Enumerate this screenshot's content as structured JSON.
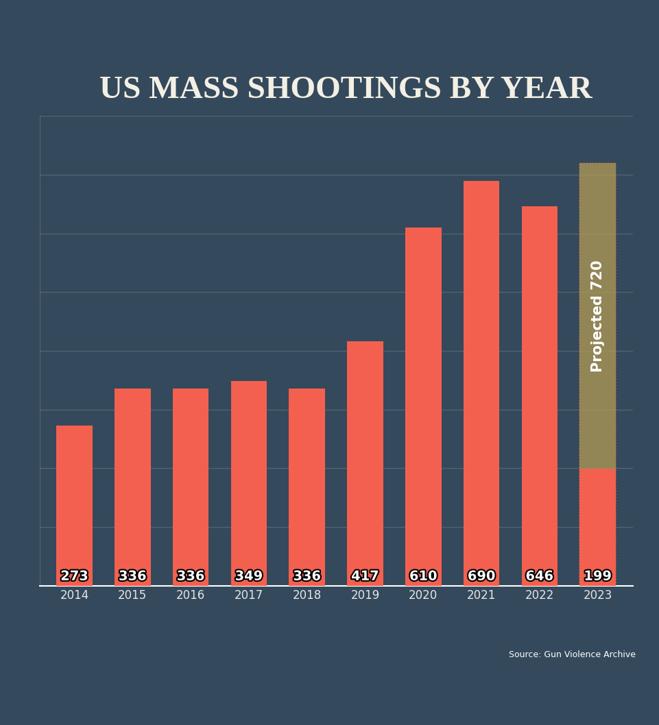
{
  "chart_data": {
    "type": "bar",
    "title": "US MASS SHOOTINGS BY YEAR",
    "categories": [
      "2014",
      "2015",
      "2016",
      "2017",
      "2018",
      "2019",
      "2020",
      "2021",
      "2022",
      "2023"
    ],
    "values": [
      273,
      336,
      336,
      349,
      336,
      417,
      610,
      690,
      646,
      199
    ],
    "color": "#f4604f",
    "data_labels": true,
    "ylim": [
      0,
      800
    ],
    "yticks": [
      0,
      100,
      200,
      300,
      400,
      500,
      600,
      700,
      800
    ],
    "grid": true,
    "tick_labels": "x",
    "annotations": [
      {
        "text": "Projected 720",
        "category": "2023",
        "value": 720,
        "color": "#b39a55"
      }
    ],
    "source": "Source: Gun Violence Archive"
  }
}
